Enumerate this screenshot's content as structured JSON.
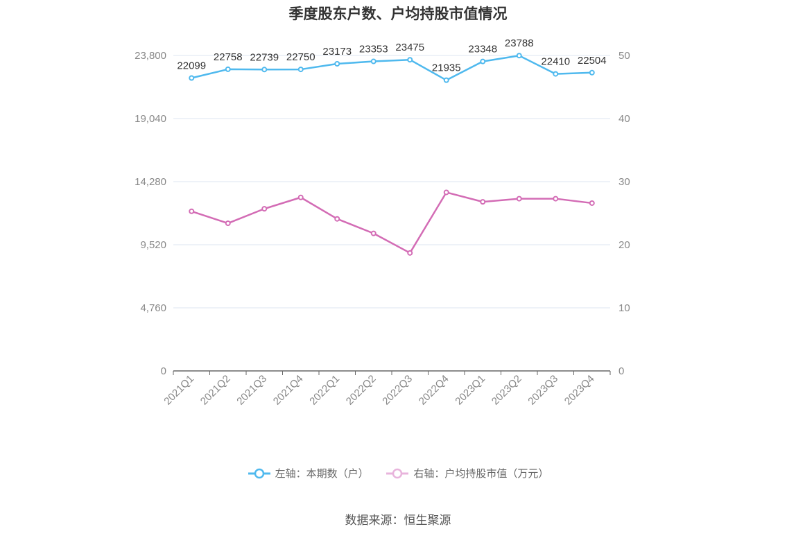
{
  "title": "季度股东户数、户均持股市值情况",
  "source": "数据来源：恒生聚源",
  "legend": {
    "left": "左轴：本期数（户）",
    "right": "右轴：户均持股市值（万元）"
  },
  "colors": {
    "left_series": "#4fb9ee",
    "right_series": "#d36cb5",
    "left_legend": "#4fb9ee",
    "right_legend": "#e8b4dc",
    "grid": "#dde6f0",
    "axis_text": "#888888",
    "label_text": "#333333"
  },
  "chart_data": {
    "type": "line",
    "title": "季度股东户数、户均持股市值情况",
    "categories": [
      "2021Q1",
      "2021Q2",
      "2021Q3",
      "2021Q4",
      "2022Q1",
      "2022Q2",
      "2022Q3",
      "2022Q4",
      "2023Q1",
      "2023Q2",
      "2023Q3",
      "2023Q4"
    ],
    "y_left": {
      "ticks": [
        "0",
        "4,760",
        "9,520",
        "14,280",
        "19,040",
        "23,800"
      ],
      "min": 0,
      "max": 23800
    },
    "y_right": {
      "ticks": [
        "0",
        "10",
        "20",
        "30",
        "40",
        "50"
      ],
      "min": 0,
      "max": 50
    },
    "grid": true,
    "legend_position": "bottom",
    "series": [
      {
        "name": "左轴：本期数（户）",
        "axis": "left",
        "values": [
          22099,
          22758,
          22739,
          22750,
          23173,
          23353,
          23475,
          21935,
          23348,
          23788,
          22410,
          22504
        ],
        "labels": [
          "22099",
          "22758",
          "22739",
          "22750",
          "23173",
          "23353",
          "23475",
          "21935",
          "23348",
          "23788",
          "22410",
          "22504"
        ]
      },
      {
        "name": "右轴：户均持股市值（万元）",
        "axis": "right",
        "values": [
          25.3,
          23.4,
          25.7,
          27.5,
          24.1,
          21.8,
          18.7,
          28.3,
          26.8,
          27.3,
          27.3,
          26.6
        ]
      }
    ]
  }
}
